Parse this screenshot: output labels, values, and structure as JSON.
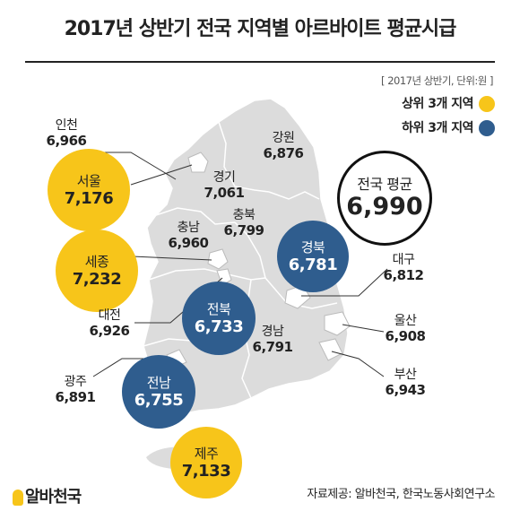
{
  "title": "2017년 상반기 전국 지역별 아르바이트 평균시급",
  "note": "[ 2017년 상반기, 단위:원 ]",
  "legend": {
    "top": {
      "label": "상위 3개 지역",
      "color": "#f7c51a"
    },
    "bottom": {
      "label": "하위 3개 지역",
      "color": "#2f5d8e"
    }
  },
  "average": {
    "label": "전국 평균",
    "value": "6,990"
  },
  "regions": {
    "incheon": {
      "name": "인천",
      "value": "6,966"
    },
    "seoul": {
      "name": "서울",
      "value": "7,176"
    },
    "gangwon": {
      "name": "강원",
      "value": "6,876"
    },
    "gyeonggi": {
      "name": "경기",
      "value": "7,061"
    },
    "chungnam": {
      "name": "충남",
      "value": "6,960"
    },
    "chungbuk": {
      "name": "충북",
      "value": "6,799"
    },
    "sejong": {
      "name": "세종",
      "value": "7,232"
    },
    "gyeongbuk": {
      "name": "경북",
      "value": "6,781"
    },
    "daegu": {
      "name": "대구",
      "value": "6,812"
    },
    "jeonbuk": {
      "name": "전북",
      "value": "6,733"
    },
    "daejeon": {
      "name": "대전",
      "value": "6,926"
    },
    "gyeongnam": {
      "name": "경남",
      "value": "6,791"
    },
    "ulsan": {
      "name": "울산",
      "value": "6,908"
    },
    "gwangju": {
      "name": "광주",
      "value": "6,891"
    },
    "jeonnam": {
      "name": "전남",
      "value": "6,755"
    },
    "busan": {
      "name": "부산",
      "value": "6,943"
    },
    "jeju": {
      "name": "제주",
      "value": "7,133"
    }
  },
  "logo": "알바천국",
  "source": "자료제공: 알바천국, 한국노동사회연구소"
}
